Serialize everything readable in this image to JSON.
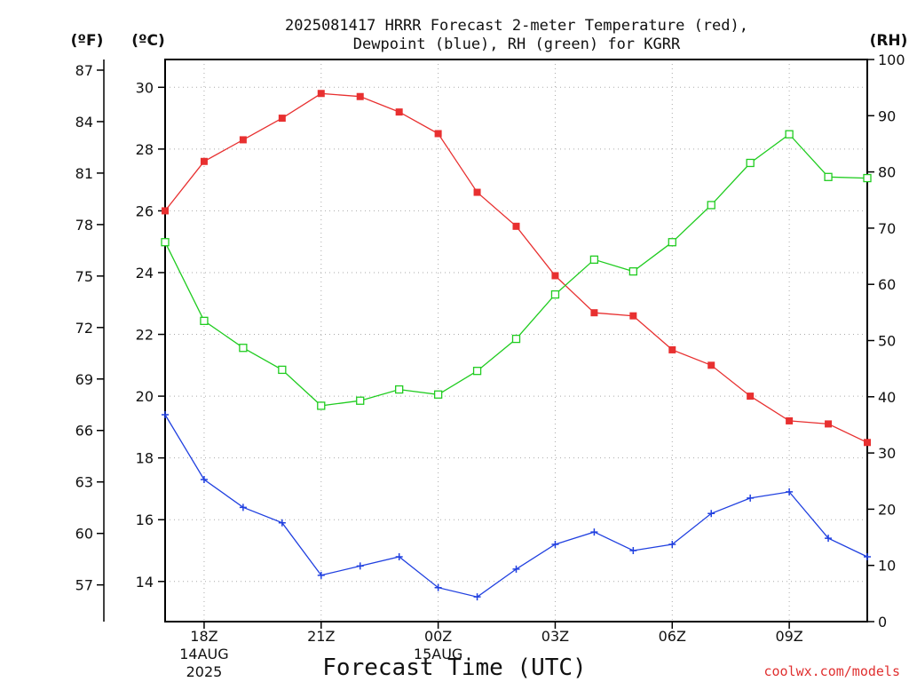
{
  "title_line1": "2025081417 HRRR Forecast 2-meter Temperature (red),",
  "title_line2": "Dewpoint (blue), RH (green) for KGRR",
  "unit_f": "(ºF)",
  "unit_c": "(ºC)",
  "unit_rh": "(RH)",
  "xlabel": "Forecast Time (UTC)",
  "credit": "coolwx.com/models",
  "colors": {
    "temperature": "#e83030",
    "dewpoint": "#2040e0",
    "rh": "#20cc20",
    "grid": "#aaaaaa"
  },
  "chart_data": {
    "type": "line",
    "x_unit": "forecast hour",
    "x": [
      0,
      1,
      2,
      3,
      4,
      5,
      6,
      7,
      8,
      9,
      10,
      11,
      12,
      13,
      14,
      15,
      16,
      17,
      18
    ],
    "xlim": [
      0,
      18
    ],
    "x_ticks": [
      {
        "x": 1,
        "lines": [
          "18Z",
          "14AUG",
          "2025"
        ]
      },
      {
        "x": 4,
        "lines": [
          "21Z"
        ]
      },
      {
        "x": 7,
        "lines": [
          "00Z",
          "15AUG"
        ]
      },
      {
        "x": 10,
        "lines": [
          "03Z"
        ]
      },
      {
        "x": 13,
        "lines": [
          "06Z"
        ]
      },
      {
        "x": 16,
        "lines": [
          "09Z"
        ]
      }
    ],
    "y_celsius": {
      "lim": [
        12.7,
        30.9
      ],
      "ticks": [
        14,
        16,
        18,
        20,
        22,
        24,
        26,
        28,
        30
      ]
    },
    "y_fahrenheit": {
      "ticks": [
        57,
        60,
        63,
        66,
        69,
        72,
        75,
        78,
        81,
        84,
        87
      ]
    },
    "y_rh": {
      "lim": [
        0,
        100
      ],
      "ticks": [
        0,
        10,
        20,
        30,
        40,
        50,
        60,
        70,
        80,
        90,
        100
      ]
    },
    "series": [
      {
        "key": "temperature",
        "axis": "celsius",
        "marker": "filled-square",
        "values": [
          26.0,
          27.6,
          28.3,
          29.0,
          29.8,
          29.7,
          29.2,
          28.5,
          26.6,
          25.5,
          23.9,
          22.7,
          22.6,
          21.5,
          21.0,
          20.0,
          19.2,
          19.1,
          18.5
        ]
      },
      {
        "key": "dewpoint",
        "axis": "celsius",
        "marker": "plus",
        "values": [
          19.4,
          17.3,
          16.4,
          15.9,
          14.2,
          14.5,
          14.8,
          13.8,
          13.5,
          14.4,
          15.2,
          15.6,
          15.0,
          15.2,
          16.2,
          16.7,
          16.9,
          15.4,
          14.8
        ]
      },
      {
        "key": "rh",
        "axis": "rh",
        "marker": "open-square",
        "values": [
          67.5,
          53.5,
          48.7,
          44.8,
          38.4,
          39.3,
          41.3,
          40.4,
          44.6,
          50.3,
          58.2,
          64.4,
          62.3,
          67.5,
          74.1,
          81.6,
          86.7,
          79.1,
          78.9
        ]
      }
    ]
  }
}
